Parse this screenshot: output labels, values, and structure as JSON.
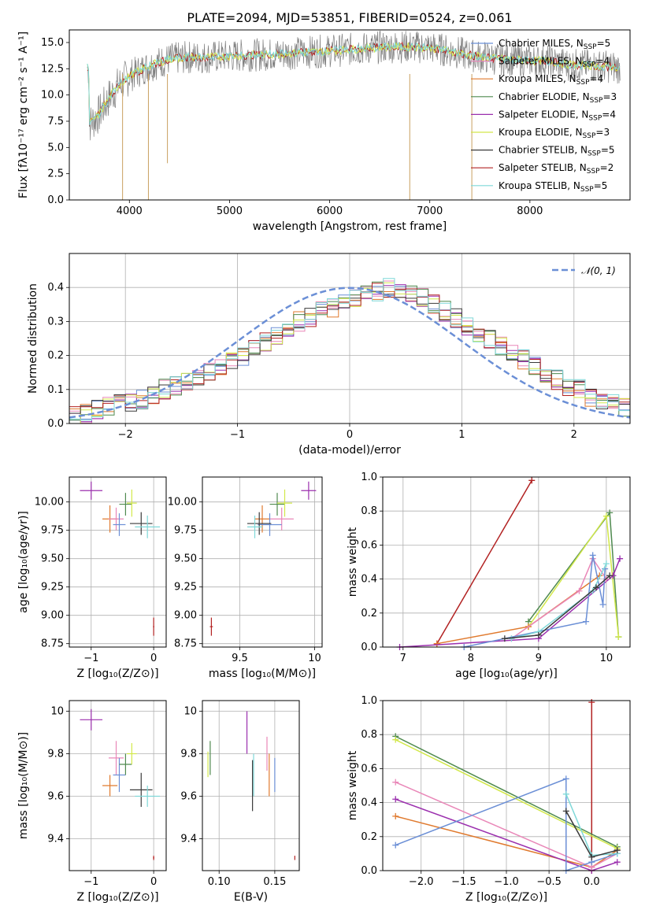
{
  "colors": [
    "#6b8fd6",
    "#e07a2e",
    "#4f8a4f",
    "#9b2fae",
    "#c8d8a0",
    "#3a3a3a",
    "#b22222",
    "#7fd8d8",
    "#e987b8",
    "#ffb04a",
    "#80c080",
    "#d2e84a"
  ],
  "figure": {
    "title": "PLATE=2094, MJD=53851, FIBERID=0524, z=0.061"
  },
  "chart_data": [
    {
      "id": "spectrum",
      "type": "line",
      "title": "PLATE=2094, MJD=53851, FIBERID=0524, z=0.061",
      "xlabel": "wavelength [Angstrom, rest frame]",
      "ylabel": "Flux [fλ10⁻¹⁷ erg cm⁻² s⁻¹ A⁻¹]",
      "xlim": [
        3400,
        9000
      ],
      "ylim": [
        0,
        16.2
      ],
      "xticks": [
        4000,
        5000,
        6000,
        7000,
        8000
      ],
      "yticks": [
        0.0,
        2.5,
        5.0,
        7.5,
        10.0,
        12.5,
        15.0
      ],
      "legend_position": "right",
      "legend": [
        {
          "label": "Chabrier MILES, N",
          "sub": "SSP",
          "tail": "=5",
          "color": "#6b8fd6"
        },
        {
          "label": "Salpeter MILES, N",
          "sub": "SSP",
          "tail": "=4",
          "color": "#e987b8"
        },
        {
          "label": "Kroupa MILES, N",
          "sub": "SSP",
          "tail": "=4",
          "color": "#e07a2e"
        },
        {
          "label": "Chabrier ELODIE, N",
          "sub": "SSP",
          "tail": "=3",
          "color": "#4f8a4f"
        },
        {
          "label": "Salpeter ELODIE, N",
          "sub": "SSP",
          "tail": "=4",
          "color": "#9b2fae"
        },
        {
          "label": "Kroupa ELODIE, N",
          "sub": "SSP",
          "tail": "=3",
          "color": "#d2e84a"
        },
        {
          "label": "Chabrier STELIB, N",
          "sub": "SSP",
          "tail": "=5",
          "color": "#3a3a3a"
        },
        {
          "label": "Salpeter STELIB, N",
          "sub": "SSP",
          "tail": "=2",
          "color": "#b22222"
        },
        {
          "label": "Kroupa STELIB, N",
          "sub": "SSP",
          "tail": "=5",
          "color": "#7fd8d8"
        }
      ],
      "continuum": [
        [
          3600,
          7.2
        ],
        [
          3700,
          8.2
        ],
        [
          3800,
          9.8
        ],
        [
          3900,
          11.0
        ],
        [
          4000,
          11.8
        ],
        [
          4200,
          12.8
        ],
        [
          4400,
          13.4
        ],
        [
          4600,
          13.6
        ],
        [
          4800,
          13.6
        ],
        [
          5000,
          13.7
        ],
        [
          5200,
          13.8
        ],
        [
          5500,
          13.9
        ],
        [
          5800,
          14.1
        ],
        [
          6000,
          14.2
        ],
        [
          6300,
          14.4
        ],
        [
          6600,
          14.6
        ],
        [
          6800,
          14.6
        ],
        [
          7000,
          14.5
        ],
        [
          7200,
          14.2
        ],
        [
          7400,
          13.8
        ],
        [
          7600,
          13.5
        ],
        [
          7800,
          13.4
        ],
        [
          8000,
          13.3
        ],
        [
          8200,
          13.2
        ],
        [
          8400,
          12.9
        ],
        [
          8600,
          12.8
        ],
        [
          8800,
          12.7
        ],
        [
          8900,
          12.6
        ]
      ],
      "dips": [
        [
          3932,
          0
        ],
        [
          4190,
          0
        ],
        [
          4380,
          3.5
        ],
        [
          6800,
          0
        ],
        [
          7420,
          0
        ]
      ]
    },
    {
      "id": "residuals",
      "type": "line",
      "xlabel": "(data-model)/error",
      "ylabel": "Normed distribution",
      "xlim": [
        -2.5,
        2.5
      ],
      "ylim": [
        0,
        0.5
      ],
      "xticks": [
        -2,
        -1,
        0,
        1,
        2
      ],
      "yticks": [
        0.0,
        0.1,
        0.2,
        0.3,
        0.4
      ],
      "legend_label": "𝒩(0, 1)",
      "legend_position": "top-right",
      "bin_width": 0.1,
      "hist_heights": [
        [
          0.02,
          0.03,
          0.04,
          0.05,
          0.06,
          0.06,
          0.07,
          0.08,
          0.1,
          0.11,
          0.12,
          0.13,
          0.15,
          0.16,
          0.19,
          0.2,
          0.22,
          0.24,
          0.26,
          0.28,
          0.3,
          0.31,
          0.33,
          0.34,
          0.36,
          0.37,
          0.38,
          0.39,
          0.4,
          0.39,
          0.38,
          0.37,
          0.35,
          0.33,
          0.31,
          0.29,
          0.27,
          0.25,
          0.23,
          0.21,
          0.19,
          0.17,
          0.15,
          0.13,
          0.11,
          0.1,
          0.08,
          0.07,
          0.06,
          0.05
        ]
      ]
    },
    {
      "id": "age-vs-Z",
      "type": "scatter",
      "xlabel": "Z [log₁₀(Z/Z⊙)]",
      "ylabel": "age  [log₁₀(age/yr)]",
      "xlim": [
        -1.35,
        0.2
      ],
      "ylim": [
        8.72,
        10.22
      ],
      "xticks": [
        -1,
        0
      ],
      "yticks": [
        8.75,
        9.0,
        9.25,
        9.5,
        9.75,
        10.0
      ],
      "points": [
        {
          "x": -1.0,
          "y": 10.1,
          "xerr": 0.18,
          "yerr": 0.08,
          "color": "#9b2fae"
        },
        {
          "x": -0.7,
          "y": 9.85,
          "xerr": 0.12,
          "yerr": 0.12,
          "color": "#e07a2e"
        },
        {
          "x": -0.6,
          "y": 9.85,
          "xerr": 0.12,
          "yerr": 0.1,
          "color": "#e987b8"
        },
        {
          "x": -0.55,
          "y": 9.8,
          "xerr": 0.1,
          "yerr": 0.1,
          "color": "#6b8fd6"
        },
        {
          "x": -0.45,
          "y": 9.98,
          "xerr": 0.1,
          "yerr": 0.1,
          "color": "#4f8a4f"
        },
        {
          "x": -0.35,
          "y": 9.99,
          "xerr": 0.08,
          "yerr": 0.12,
          "color": "#d2e84a"
        },
        {
          "x": -0.2,
          "y": 9.81,
          "xerr": 0.18,
          "yerr": 0.1,
          "color": "#3a3a3a"
        },
        {
          "x": -0.1,
          "y": 9.78,
          "xerr": 0.2,
          "yerr": 0.1,
          "color": "#7fd8d8"
        },
        {
          "x": 0.0,
          "y": 8.9,
          "xerr": 0.01,
          "yerr": 0.08,
          "color": "#b22222"
        }
      ]
    },
    {
      "id": "age-vs-mass",
      "type": "scatter",
      "xlabel": "mass [log₁₀(M/M⊙)]",
      "ylabel": "",
      "xlim": [
        9.25,
        10.05
      ],
      "ylim": [
        8.72,
        10.22
      ],
      "xticks": [
        9.5,
        10.0
      ],
      "yticks": [
        8.75,
        9.0,
        9.25,
        9.5,
        9.75,
        10.0
      ],
      "points": [
        {
          "x": 9.96,
          "y": 10.1,
          "xerr": 0.05,
          "yerr": 0.08,
          "color": "#9b2fae"
        },
        {
          "x": 9.65,
          "y": 9.85,
          "xerr": 0.05,
          "yerr": 0.12,
          "color": "#e07a2e"
        },
        {
          "x": 9.78,
          "y": 9.85,
          "xerr": 0.08,
          "yerr": 0.1,
          "color": "#e987b8"
        },
        {
          "x": 9.7,
          "y": 9.8,
          "xerr": 0.08,
          "yerr": 0.1,
          "color": "#6b8fd6"
        },
        {
          "x": 9.75,
          "y": 9.98,
          "xerr": 0.05,
          "yerr": 0.1,
          "color": "#4f8a4f"
        },
        {
          "x": 9.8,
          "y": 9.99,
          "xerr": 0.05,
          "yerr": 0.12,
          "color": "#d2e84a"
        },
        {
          "x": 9.63,
          "y": 9.81,
          "xerr": 0.08,
          "yerr": 0.1,
          "color": "#3a3a3a"
        },
        {
          "x": 9.6,
          "y": 9.78,
          "xerr": 0.05,
          "yerr": 0.1,
          "color": "#7fd8d8"
        },
        {
          "x": 9.31,
          "y": 8.9,
          "xerr": 0.01,
          "yerr": 0.08,
          "color": "#b22222"
        }
      ]
    },
    {
      "id": "weight-vs-age",
      "type": "line",
      "xlabel": "age  [log₁₀(age/yr)]",
      "ylabel": "mass weight",
      "xlim": [
        6.7,
        10.35
      ],
      "ylim": [
        0,
        1.0
      ],
      "xticks": [
        7,
        8,
        9,
        10
      ],
      "yticks": [
        0.0,
        0.2,
        0.4,
        0.6,
        0.8,
        1.0
      ],
      "series": [
        {
          "color": "#b22222",
          "x": [
            7.5,
            8.9
          ],
          "y": [
            0.02,
            0.98
          ]
        },
        {
          "color": "#4f8a4f",
          "x": [
            8.85,
            10.05,
            10.18
          ],
          "y": [
            0.15,
            0.79,
            0.06
          ]
        },
        {
          "color": "#d2e84a",
          "x": [
            8.85,
            10.0,
            10.18
          ],
          "y": [
            0.12,
            0.77,
            0.06
          ]
        },
        {
          "color": "#e07a2e",
          "x": [
            7.5,
            8.85,
            9.9
          ],
          "y": [
            0.02,
            0.12,
            0.42
          ]
        },
        {
          "color": "#9b2fae",
          "x": [
            6.95,
            9.0,
            10.1,
            10.2
          ],
          "y": [
            0.0,
            0.05,
            0.42,
            0.52
          ]
        },
        {
          "color": "#e987b8",
          "x": [
            8.6,
            9.6,
            9.8,
            10.0
          ],
          "y": [
            0.05,
            0.33,
            0.52,
            0.4
          ]
        },
        {
          "color": "#6b8fd6",
          "x": [
            7.9,
            9.7,
            9.8,
            9.95,
            9.98
          ],
          "y": [
            0.0,
            0.15,
            0.54,
            0.25,
            0.46
          ]
        },
        {
          "color": "#7fd8d8",
          "x": [
            8.6,
            9.0,
            9.8,
            10.0
          ],
          "y": [
            0.05,
            0.09,
            0.33,
            0.49
          ]
        },
        {
          "color": "#3a3a3a",
          "x": [
            8.5,
            9.0,
            9.85,
            10.05
          ],
          "y": [
            0.05,
            0.07,
            0.35,
            0.42
          ]
        }
      ]
    },
    {
      "id": "mass-vs-Z",
      "type": "scatter",
      "xlabel": "Z [log₁₀(Z/Z⊙)]",
      "ylabel": "mass [log₁₀(M/M⊙)]",
      "xlim": [
        -1.35,
        0.2
      ],
      "ylim": [
        9.25,
        10.05
      ],
      "xticks": [
        -1,
        0
      ],
      "yticks": [
        9.4,
        9.6,
        9.8,
        10.0
      ],
      "points": [
        {
          "x": -1.0,
          "y": 9.96,
          "xerr": 0.18,
          "yerr": 0.05,
          "color": "#9b2fae"
        },
        {
          "x": -0.7,
          "y": 9.65,
          "xerr": 0.12,
          "yerr": 0.05,
          "color": "#e07a2e"
        },
        {
          "x": -0.6,
          "y": 9.78,
          "xerr": 0.12,
          "yerr": 0.08,
          "color": "#e987b8"
        },
        {
          "x": -0.55,
          "y": 9.7,
          "xerr": 0.1,
          "yerr": 0.08,
          "color": "#6b8fd6"
        },
        {
          "x": -0.45,
          "y": 9.75,
          "xerr": 0.1,
          "yerr": 0.05,
          "color": "#4f8a4f"
        },
        {
          "x": -0.35,
          "y": 9.8,
          "xerr": 0.08,
          "yerr": 0.05,
          "color": "#d2e84a"
        },
        {
          "x": -0.2,
          "y": 9.63,
          "xerr": 0.18,
          "yerr": 0.08,
          "color": "#3a3a3a"
        },
        {
          "x": -0.1,
          "y": 9.6,
          "xerr": 0.2,
          "yerr": 0.05,
          "color": "#7fd8d8"
        },
        {
          "x": 0.0,
          "y": 9.31,
          "xerr": 0.01,
          "yerr": 0.01,
          "color": "#b22222"
        }
      ]
    },
    {
      "id": "mass-vs-EBV",
      "type": "scatter",
      "xlabel": "E(B-V)",
      "ylabel": "",
      "xlim": [
        0.085,
        0.172
      ],
      "ylim": [
        9.25,
        10.05
      ],
      "xticks": [
        0.1,
        0.15
      ],
      "yticks": [
        9.4,
        9.6,
        9.8,
        10.0
      ],
      "points": [
        {
          "x": 0.09,
          "y": 9.75,
          "xerr": 0,
          "yerr": 0.06,
          "color": "#d2e84a"
        },
        {
          "x": 0.092,
          "y": 9.78,
          "xerr": 0,
          "yerr": 0.08,
          "color": "#4f8a4f"
        },
        {
          "x": 0.125,
          "y": 9.9,
          "xerr": 0,
          "yerr": 0.1,
          "color": "#9b2fae"
        },
        {
          "x": 0.13,
          "y": 9.65,
          "xerr": 0,
          "yerr": 0.12,
          "color": "#3a3a3a"
        },
        {
          "x": 0.131,
          "y": 9.7,
          "xerr": 0,
          "yerr": 0.1,
          "color": "#7fd8d8"
        },
        {
          "x": 0.143,
          "y": 9.8,
          "xerr": 0,
          "yerr": 0.08,
          "color": "#e987b8"
        },
        {
          "x": 0.145,
          "y": 9.7,
          "xerr": 0,
          "yerr": 0.1,
          "color": "#e07a2e"
        },
        {
          "x": 0.15,
          "y": 9.7,
          "xerr": 0,
          "yerr": 0.08,
          "color": "#6b8fd6"
        },
        {
          "x": 0.168,
          "y": 9.31,
          "xerr": 0,
          "yerr": 0.01,
          "color": "#b22222"
        }
      ]
    },
    {
      "id": "weight-vs-Z",
      "type": "line",
      "xlabel": "Z [log₁₀(Z/Z⊙)]",
      "ylabel": "mass weight",
      "xlim": [
        -2.45,
        0.45
      ],
      "ylim": [
        0,
        1.0
      ],
      "xticks": [
        -2.0,
        -1.5,
        -1.0,
        -0.5,
        0.0
      ],
      "yticks": [
        0.0,
        0.2,
        0.4,
        0.6,
        0.8,
        1.0
      ],
      "series": [
        {
          "color": "#b22222",
          "x": [
            0.0,
            0.0
          ],
          "y": [
            0.0,
            0.99
          ]
        },
        {
          "color": "#4f8a4f",
          "x": [
            -2.3,
            0.3
          ],
          "y": [
            0.79,
            0.14
          ]
        },
        {
          "color": "#d2e84a",
          "x": [
            -2.3,
            0.3
          ],
          "y": [
            0.77,
            0.13
          ]
        },
        {
          "color": "#e07a2e",
          "x": [
            -2.3,
            0.0,
            0.3
          ],
          "y": [
            0.32,
            0.02,
            0.12
          ]
        },
        {
          "color": "#9b2fae",
          "x": [
            -2.3,
            0.0,
            0.3
          ],
          "y": [
            0.42,
            0.0,
            0.05
          ]
        },
        {
          "color": "#e987b8",
          "x": [
            -2.3,
            0.0,
            0.3
          ],
          "y": [
            0.52,
            0.02,
            0.1
          ]
        },
        {
          "color": "#6b8fd6",
          "x": [
            -2.3,
            -0.3,
            -0.3,
            0.0,
            0.3
          ],
          "y": [
            0.15,
            0.54,
            0.0,
            0.05,
            0.1
          ]
        },
        {
          "color": "#7fd8d8",
          "x": [
            -0.3,
            0.0,
            0.3
          ],
          "y": [
            0.45,
            0.09,
            0.1
          ]
        },
        {
          "color": "#3a3a3a",
          "x": [
            -0.3,
            0.0,
            0.3
          ],
          "y": [
            0.35,
            0.08,
            0.12
          ]
        }
      ]
    }
  ]
}
